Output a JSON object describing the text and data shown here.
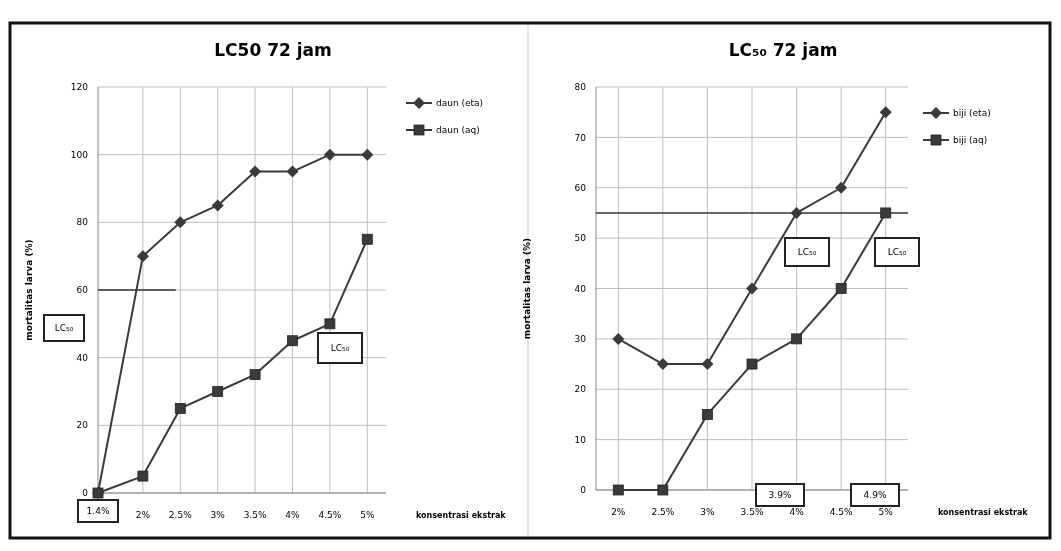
{
  "chart_data": [
    {
      "type": "line",
      "title": "LC50 72 jam",
      "xlabel": "konsentrasi ekstrak",
      "ylabel": "mortalitas larva (%)",
      "x": [
        1.4,
        2,
        2.5,
        3,
        3.5,
        4,
        4.5,
        5
      ],
      "xlim": [
        1.4,
        5.25
      ],
      "xticks": [
        {
          "value": 2,
          "label": "2%"
        },
        {
          "value": 2.5,
          "label": "2.5%"
        },
        {
          "value": 3,
          "label": "3%"
        },
        {
          "value": 3.5,
          "label": "3.5%"
        },
        {
          "value": 4,
          "label": "4%"
        },
        {
          "value": 4.5,
          "label": "4.5%"
        },
        {
          "value": 5,
          "label": "5%"
        }
      ],
      "ylim": [
        0,
        120
      ],
      "yticks": [
        0,
        20,
        40,
        60,
        80,
        100,
        120
      ],
      "series": [
        {
          "name": "daun (eta)",
          "color": "#3a3a3a",
          "marker": "diamond",
          "values": [
            0,
            70,
            80,
            85,
            95,
            95,
            100,
            100
          ]
        },
        {
          "name": "daun (aq)",
          "color": "#3a3a3a",
          "marker": "square",
          "values": [
            0,
            5,
            25,
            30,
            35,
            45,
            50,
            75
          ]
        }
      ],
      "ref_lines": [
        {
          "axis": "y",
          "value": 60,
          "color": "#333333"
        }
      ],
      "annotations": [
        "LC₅₀",
        "LC₅₀",
        "1.4%"
      ],
      "grid": true,
      "legend": "right"
    },
    {
      "type": "line",
      "title": "LC₅₀ 72 jam",
      "xlabel": "konsentrasi ekstrak",
      "ylabel": "mortalitas larva (%)",
      "categories": [
        "2%",
        "2.5%",
        "3%",
        "3.5%",
        "4%",
        "4.5%",
        "5%"
      ],
      "ylim": [
        0,
        80
      ],
      "yticks": [
        0,
        10,
        20,
        30,
        40,
        50,
        60,
        70,
        80
      ],
      "series": [
        {
          "name": "biji (eta)",
          "color": "#3a3a3a",
          "marker": "diamond",
          "values": [
            30,
            25,
            25,
            40,
            55,
            60,
            75
          ]
        },
        {
          "name": "biji (aq)",
          "color": "#3a3a3a",
          "marker": "square",
          "values": [
            0,
            0,
            15,
            25,
            30,
            40,
            55
          ]
        }
      ],
      "ref_lines": [
        {
          "axis": "y",
          "value": 55,
          "color": "#333333"
        }
      ],
      "annotations": [
        "LC₅₀",
        "LC₅₀",
        "3.9%",
        "4.9%"
      ],
      "grid": true,
      "legend": "right"
    }
  ]
}
